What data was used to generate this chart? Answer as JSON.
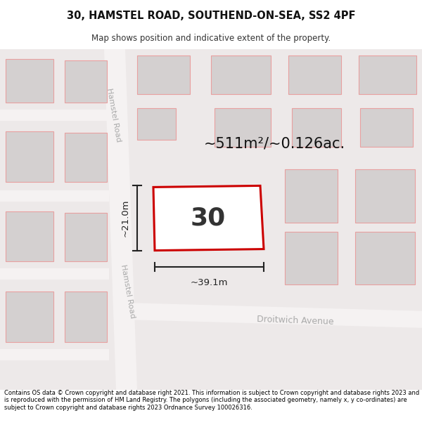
{
  "title_line1": "30, HAMSTEL ROAD, SOUTHEND-ON-SEA, SS2 4PF",
  "title_line2": "Map shows position and indicative extent of the property.",
  "area_label": "~511m²/~0.126ac.",
  "number_label": "30",
  "width_label": "~39.1m",
  "height_label": "~21.0m",
  "road_label1": "Hamstel Road",
  "road_label2": "Hamstel Road",
  "street_label": "Droitwich Avenue",
  "footer_text": "Contains OS data © Crown copyright and database right 2021. This information is subject to Crown copyright and database rights 2023 and is reproduced with the permission of HM Land Registry. The polygons (including the associated geometry, namely x, y co-ordinates) are subject to Crown copyright and database rights 2023 Ordnance Survey 100026316.",
  "map_bg": "#ede9e9",
  "building_fill": "#d4d0d0",
  "building_edge": "#e8a0a0",
  "property_color": "#cc0000",
  "property_fill": "#ffffff",
  "road_fill": "#f5f2f2",
  "dim_color": "#222222",
  "text_color": "#111111",
  "road_text_color": "#aaaaaa",
  "white": "#ffffff"
}
